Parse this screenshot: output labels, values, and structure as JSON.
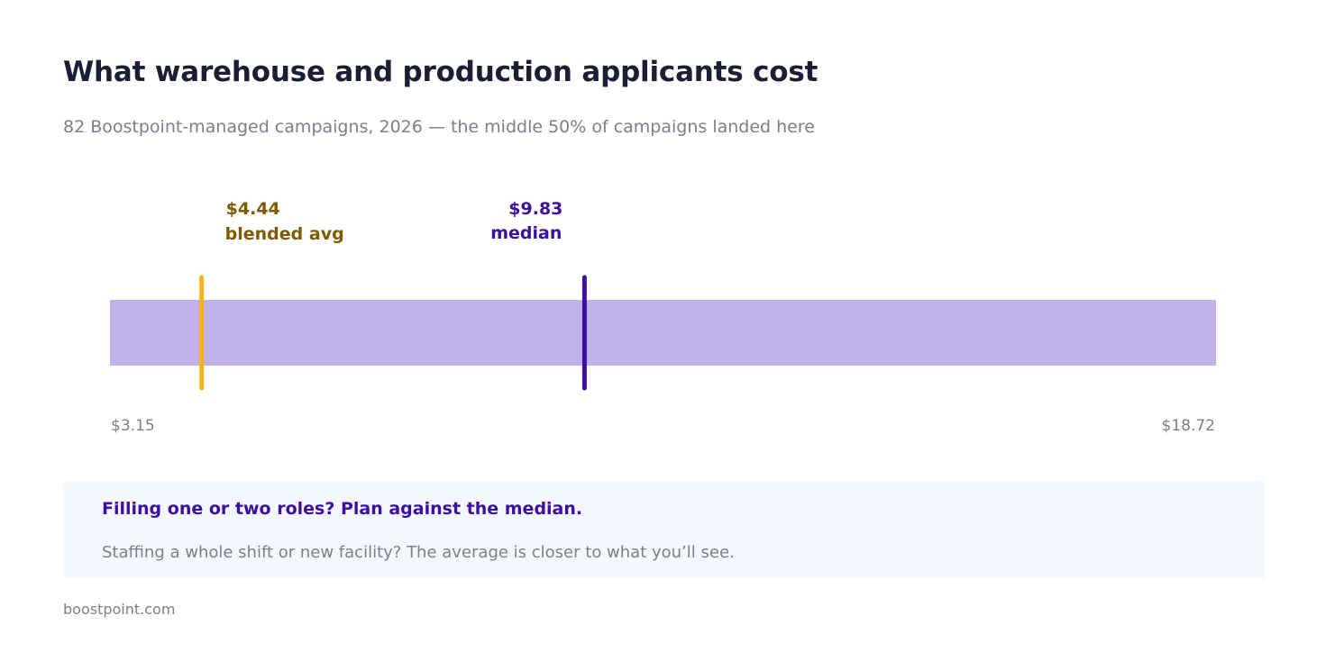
{
  "header": {
    "title": "What warehouse and production applicants cost",
    "subtitle": "82 Boostpoint-managed campaigns, 2026 — the middle 50% of campaigns landed here"
  },
  "chart_data": {
    "type": "range",
    "range": {
      "min": 3.15,
      "max": 18.72,
      "min_label": "$3.15",
      "max_label": "$18.72"
    },
    "markers": [
      {
        "id": "avg",
        "value": 4.44,
        "value_label": "$4.44",
        "name": "blended avg",
        "color": "#ffb21a",
        "label_color": "#7e5a00"
      },
      {
        "id": "median",
        "value": 9.83,
        "value_label": "$9.83",
        "name": "median",
        "color": "#3d0fa0",
        "label_color": "#3d0fa0"
      }
    ],
    "band_color": "#c0b1e8"
  },
  "callout": {
    "heading": "Filling one or two roles? Plan against the median.",
    "body": "Staffing a whole shift or new facility? The average is closer to what you’ll see."
  },
  "footer": {
    "source": "boostpoint.com"
  }
}
